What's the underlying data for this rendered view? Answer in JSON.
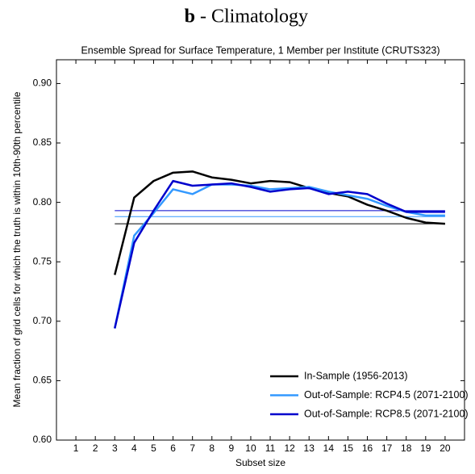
{
  "chart_data": {
    "type": "line",
    "panel": "b",
    "title": "- Climatology",
    "subtitle": "Ensemble Spread for Surface Temperature, 1 Member per Institute (CRUTS323)",
    "xlabel": "Subset size",
    "ylabel": "Mean fraction of grid cells for which the truth is within 10th-90th percentile",
    "x": [
      3,
      4,
      5,
      6,
      7,
      8,
      9,
      10,
      11,
      12,
      13,
      14,
      15,
      16,
      17,
      18,
      19,
      20
    ],
    "series": [
      {
        "name": "In-Sample (1956-2013)",
        "color": "#000000",
        "reference": 0.782,
        "values": [
          0.739,
          0.804,
          0.818,
          0.825,
          0.826,
          0.821,
          0.819,
          0.816,
          0.818,
          0.817,
          0.812,
          0.808,
          0.805,
          0.798,
          0.793,
          0.787,
          0.783,
          0.782
        ]
      },
      {
        "name": "Out-of-Sample: RCP4.5 (2071-2100)",
        "color": "#3399ff",
        "reference": 0.788,
        "values": [
          0.694,
          0.772,
          0.791,
          0.811,
          0.807,
          0.815,
          0.815,
          0.814,
          0.811,
          0.812,
          0.813,
          0.809,
          0.806,
          0.803,
          0.797,
          0.792,
          0.789,
          0.789
        ]
      },
      {
        "name": "Out-of-Sample: RCP8.5 (2071-2100)",
        "color": "#0000cc",
        "reference": 0.793,
        "values": [
          0.694,
          0.766,
          0.793,
          0.818,
          0.814,
          0.815,
          0.816,
          0.813,
          0.809,
          0.811,
          0.812,
          0.807,
          0.809,
          0.807,
          0.799,
          0.792,
          0.792,
          0.792
        ]
      }
    ],
    "xlim": [
      0,
      21
    ],
    "xticks": [
      1,
      2,
      3,
      4,
      5,
      6,
      7,
      8,
      9,
      10,
      11,
      12,
      13,
      14,
      15,
      16,
      17,
      18,
      19,
      20
    ],
    "ylim": [
      0.6,
      0.92
    ],
    "yticks": [
      {
        "value": 0.6,
        "label": "0.60"
      },
      {
        "value": 0.65,
        "label": "0.65"
      },
      {
        "value": 0.7,
        "label": "0.70"
      },
      {
        "value": 0.75,
        "label": "0.75"
      },
      {
        "value": 0.8,
        "label": "0.80"
      },
      {
        "value": 0.85,
        "label": "0.85"
      },
      {
        "value": 0.9,
        "label": "0.90"
      }
    ],
    "legend": "lower right",
    "grid": false
  }
}
